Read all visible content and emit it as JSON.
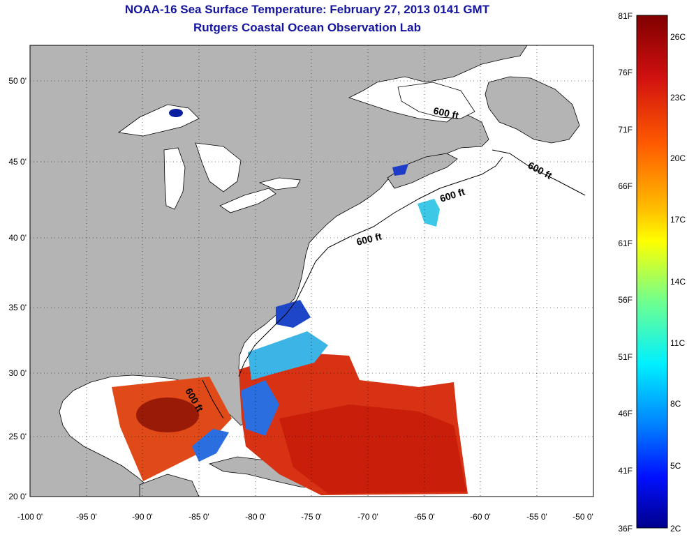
{
  "title": {
    "line1": "NOAA-16 Sea Surface Temperature:  February 27, 2013 0141 GMT",
    "line2": "Rutgers Coastal Ocean Observation Lab"
  },
  "axes": {
    "lon_ticks": [
      "-100 0'",
      "-95 0'",
      "-90 0'",
      "-85 0'",
      "-80 0'",
      "-75 0'",
      "-70 0'",
      "-65 0'",
      "-60 0'",
      "-55 0'",
      "-50 0'"
    ],
    "lat_ticks": [
      "50 0'",
      "45 0'",
      "40 0'",
      "35 0'",
      "30 0'",
      "25 0'",
      "20 0'"
    ]
  },
  "isobath_label": "600 ft",
  "colorbar": {
    "fahrenheit": [
      "81F",
      "76F",
      "71F",
      "66F",
      "61F",
      "56F",
      "51F",
      "46F",
      "41F",
      "36F"
    ],
    "celsius": [
      "26C",
      "23C",
      "20C",
      "17C",
      "14C",
      "11C",
      "8C",
      "5C",
      "2C"
    ]
  },
  "colors": {
    "land": "#b4b4b4",
    "title": "#1414a0",
    "sst_hot": "#c81e0a",
    "sst_warm": "#e85014",
    "sst_cool": "#2a6ee0",
    "sst_cold": "#0a1ea0",
    "sst_mid": "#28c8e6"
  }
}
